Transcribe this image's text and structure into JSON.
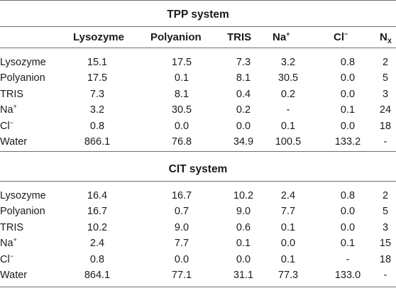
{
  "tpp_title": "TPP system",
  "cit_title": "CIT system",
  "columns": {
    "lysozyme": "Lysozyme",
    "polyanion": "Polyanion",
    "tris": "TRIS",
    "na": "Na",
    "na_sup": "+",
    "cl": "Cl",
    "cl_sup": "−",
    "nx": "N",
    "nx_sub": "X"
  },
  "tpp_rows": [
    {
      "label": "Lysozyme",
      "label_sup": "",
      "cells": [
        "15.1",
        "17.5",
        "7.3",
        "3.2",
        "0.8",
        "2"
      ]
    },
    {
      "label": "Polyanion",
      "label_sup": "",
      "cells": [
        "17.5",
        "0.1",
        "8.1",
        "30.5",
        "0.0",
        "5"
      ]
    },
    {
      "label": "TRIS",
      "label_sup": "",
      "cells": [
        "7.3",
        "8.1",
        "0.4",
        "0.2",
        "0.0",
        "3"
      ]
    },
    {
      "label": "Na",
      "label_sup": "+",
      "cells": [
        "3.2",
        "30.5",
        "0.2",
        "-",
        "0.1",
        "24"
      ]
    },
    {
      "label": "Cl",
      "label_sup": "−",
      "cells": [
        "0.8",
        "0.0",
        "0.0",
        "0.1",
        "0.0",
        "18"
      ]
    },
    {
      "label": "Water",
      "label_sup": "",
      "cells": [
        "866.1",
        "76.8",
        "34.9",
        "100.5",
        "133.2",
        "-"
      ]
    }
  ],
  "cit_rows": [
    {
      "label": "Lysozyme",
      "label_sup": "",
      "cells": [
        "16.4",
        "16.7",
        "10.2",
        "2.4",
        "0.8",
        "2"
      ]
    },
    {
      "label": "Polyanion",
      "label_sup": "",
      "cells": [
        "16.7",
        "0.7",
        "9.0",
        "7.7",
        "0.0",
        "5"
      ]
    },
    {
      "label": "TRIS",
      "label_sup": "",
      "cells": [
        "10.2",
        "9.0",
        "0.6",
        "0.1",
        "0.0",
        "3"
      ]
    },
    {
      "label": "Na",
      "label_sup": "+",
      "cells": [
        "2.4",
        "7.7",
        "0.1",
        "0.0",
        "0.1",
        "15"
      ]
    },
    {
      "label": "Cl",
      "label_sup": "−",
      "cells": [
        "0.8",
        "0.0",
        "0.0",
        "0.1",
        "-",
        "18"
      ]
    },
    {
      "label": "Water",
      "label_sup": "",
      "cells": [
        "864.1",
        "77.1",
        "31.1",
        "77.3",
        "133.0",
        "-"
      ]
    }
  ]
}
